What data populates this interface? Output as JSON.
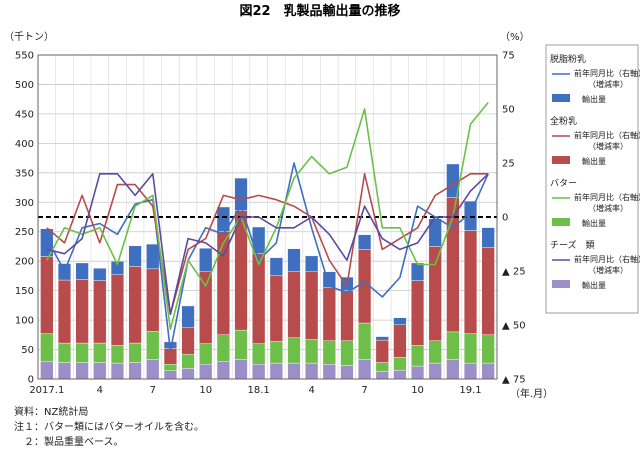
{
  "title": "図22　乳製品輸出量の推移",
  "chart_data": {
    "type": "bar",
    "stacked": true,
    "y_left_unit": "（千トン）",
    "y_right_unit": "（%）",
    "x_unit": "（年.月）",
    "y_left_range": [
      0,
      550
    ],
    "y_left_ticks": [
      0,
      50,
      100,
      150,
      200,
      250,
      300,
      350,
      400,
      450,
      500,
      550
    ],
    "y_right_range": [
      75,
      -75
    ],
    "y_right_ticks": [
      {
        "value": 75,
        "label": "75"
      },
      {
        "value": 50,
        "label": "50"
      },
      {
        "value": 25,
        "label": "25"
      },
      {
        "value": 0,
        "label": "0"
      },
      {
        "value": -25,
        "label": "▲ 25"
      },
      {
        "value": -50,
        "label": "▲ 50"
      },
      {
        "value": -75,
        "label": "▲ 75"
      }
    ],
    "x_tick_labels": [
      {
        "index": 0,
        "label": "2017.1"
      },
      {
        "index": 3,
        "label": "4"
      },
      {
        "index": 6,
        "label": "7"
      },
      {
        "index": 9,
        "label": "10"
      },
      {
        "index": 12,
        "label": "18.1"
      },
      {
        "index": 15,
        "label": "4"
      },
      {
        "index": 18,
        "label": "7"
      },
      {
        "index": 21,
        "label": "10"
      },
      {
        "index": 24,
        "label": "19.1"
      }
    ],
    "n_months": 26,
    "grid": true,
    "bar_series": [
      {
        "key": "cheese",
        "color": "#9c8fc8",
        "values": [
          30,
          28,
          28,
          28,
          27,
          28,
          33,
          14,
          18,
          25,
          30,
          33,
          25,
          27,
          27,
          27,
          25,
          23,
          33,
          13,
          15,
          22,
          27,
          33,
          27,
          27
        ]
      },
      {
        "key": "butter",
        "color": "#6dbf4a",
        "values": [
          47,
          33,
          33,
          33,
          30,
          33,
          48,
          11,
          24,
          35,
          45,
          50,
          35,
          37,
          43,
          40,
          40,
          42,
          62,
          15,
          22,
          35,
          38,
          47,
          50,
          48
        ]
      },
      {
        "key": "wmp",
        "color": "#b84c4c",
        "values": [
          131,
          107,
          108,
          106,
          120,
          130,
          106,
          27,
          45,
          122,
          175,
          203,
          153,
          112,
          113,
          115,
          90,
          85,
          125,
          38,
          55,
          110,
          160,
          228,
          175,
          148
        ]
      },
      {
        "key": "smp",
        "color": "#3f6fbf",
        "values": [
          47,
          28,
          28,
          21,
          23,
          35,
          42,
          11,
          37,
          40,
          42,
          55,
          45,
          30,
          38,
          27,
          27,
          23,
          25,
          6,
          12,
          30,
          47,
          57,
          50,
          34
        ]
      }
    ],
    "line_series": [
      {
        "key": "smp_yoy",
        "color": "#3f6fbf",
        "values": [
          -10,
          -25,
          -5,
          -3,
          -8,
          6,
          8,
          -62,
          -20,
          -5,
          -8,
          5,
          -20,
          -12,
          25,
          -5,
          -32,
          -35,
          -30,
          -37,
          -28,
          5,
          0,
          -5,
          2,
          20
        ]
      },
      {
        "key": "wmp_yoy",
        "color": "#b84c4c",
        "values": [
          -5,
          -12,
          10,
          -12,
          15,
          15,
          5,
          -45,
          -15,
          -10,
          10,
          8,
          10,
          8,
          5,
          0,
          -20,
          -32,
          20,
          -15,
          -10,
          -5,
          10,
          15,
          20,
          20
        ]
      },
      {
        "key": "butter_yoy",
        "color": "#6dbf4a",
        "values": [
          -20,
          -5,
          -8,
          -5,
          -22,
          5,
          10,
          -52,
          -20,
          -32,
          -12,
          0,
          -22,
          -5,
          18,
          28,
          20,
          23,
          50,
          -5,
          -5,
          -22,
          -22,
          0,
          43,
          53
        ]
      },
      {
        "key": "cheese_yoy",
        "color": "#5a4ba0",
        "values": [
          -15,
          -17,
          -10,
          20,
          20,
          10,
          20,
          -45,
          -10,
          -12,
          -18,
          0,
          0,
          -5,
          -5,
          0,
          -8,
          -20,
          5,
          -10,
          -15,
          -12,
          0,
          0,
          12,
          20
        ]
      }
    ]
  },
  "legend": [
    {
      "group": "脱脂粉乳",
      "line_label": "前年同月比（右軸）",
      "line_sub": "（増減率）",
      "bar_label": "輸出量",
      "color": "#3f6fbf",
      "line_color": "#3f6fbf"
    },
    {
      "group": "全粉乳",
      "line_label": "前年同月比（右軸）",
      "line_sub": "（増減率）",
      "bar_label": "輸出量",
      "color": "#b84c4c",
      "line_color": "#b84c4c"
    },
    {
      "group": "バター",
      "line_label": "前年同月比（右軸）",
      "line_sub": "（増減率）",
      "bar_label": "輸出量",
      "color": "#6dbf4a",
      "line_color": "#6dbf4a"
    },
    {
      "group": "チーズ　類",
      "line_label": "前年同月比（右軸）",
      "line_sub": "（増減率）",
      "bar_label": "輸出量",
      "color": "#9c8fc8",
      "line_color": "#5a4ba0"
    }
  ],
  "notes": {
    "source": "資料：NZ統計局",
    "note1": "注１：バター類にはバターオイルを含む。",
    "note2": "　２：製品重量ベース。"
  }
}
